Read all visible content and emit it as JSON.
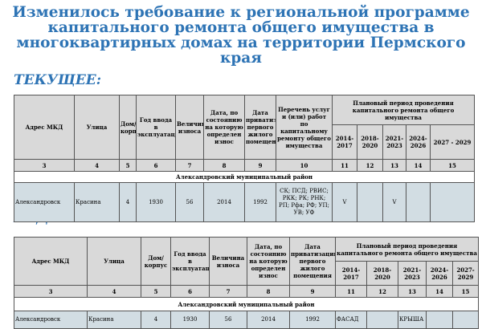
{
  "title": "Изменилось требование к региональной программе капитального ремонта общего имущества в многоквартирных домах на территории Пермского края",
  "current": {
    "label": "ТЕКУЩЕЕ:",
    "headers": [
      "Адрес МКД",
      "Улица",
      "Дом/корпус",
      "Год ввода в эксплуатацию",
      "Величина износа",
      "Дата, по состоянию на которую определен износ",
      "Дата приватизации первого жилого помещения",
      "Перечень услуг и (или) работ по капитальному ремонту общего имущества",
      "Плановый период проведения капитального ремонта общего имущества"
    ],
    "periods": [
      "2014-2017",
      "2018-2020",
      "2021-2023",
      "2024-2026",
      "2027 - 2029"
    ],
    "numbers": [
      "3",
      "4",
      "5",
      "6",
      "7",
      "8",
      "9",
      "10",
      "11",
      "12",
      "13",
      "14",
      "15"
    ],
    "district": "Александровский муниципальный  район",
    "row": [
      "Александровск",
      "Красина",
      "4",
      "1930",
      "56",
      "2014",
      "1992",
      "СК; ПСД; РВИС; РКК; РК; РНК; РП; Рфа; РФ; УП; УВ; УФ",
      "V",
      "",
      "V",
      "",
      ""
    ]
  },
  "future": {
    "label": "БУДЕТ:",
    "headers": [
      "Адрес МКД",
      "Улица",
      "Дом/корпус",
      "Год ввода в эксплуатацию",
      "Величина износа",
      "Дата, по состоянию на которую определен износ",
      "Дата приватизации первого жилого помещения",
      "Плановый период проведения капитального ремонта общего имущества"
    ],
    "periods": [
      "2014-2017",
      "2018-2020",
      "2021-2023",
      "2024-2026",
      "2027-2029"
    ],
    "numbers": [
      "3",
      "4",
      "5",
      "6",
      "7",
      "8",
      "9",
      "11",
      "12",
      "13",
      "14",
      "15"
    ],
    "district": "Александровский муниципальный  район",
    "row": [
      "Александровск",
      "Красина",
      "4",
      "1930",
      "56",
      "2014",
      "1992",
      "ФАСАД",
      "",
      "КРЫША",
      "",
      ""
    ]
  }
}
